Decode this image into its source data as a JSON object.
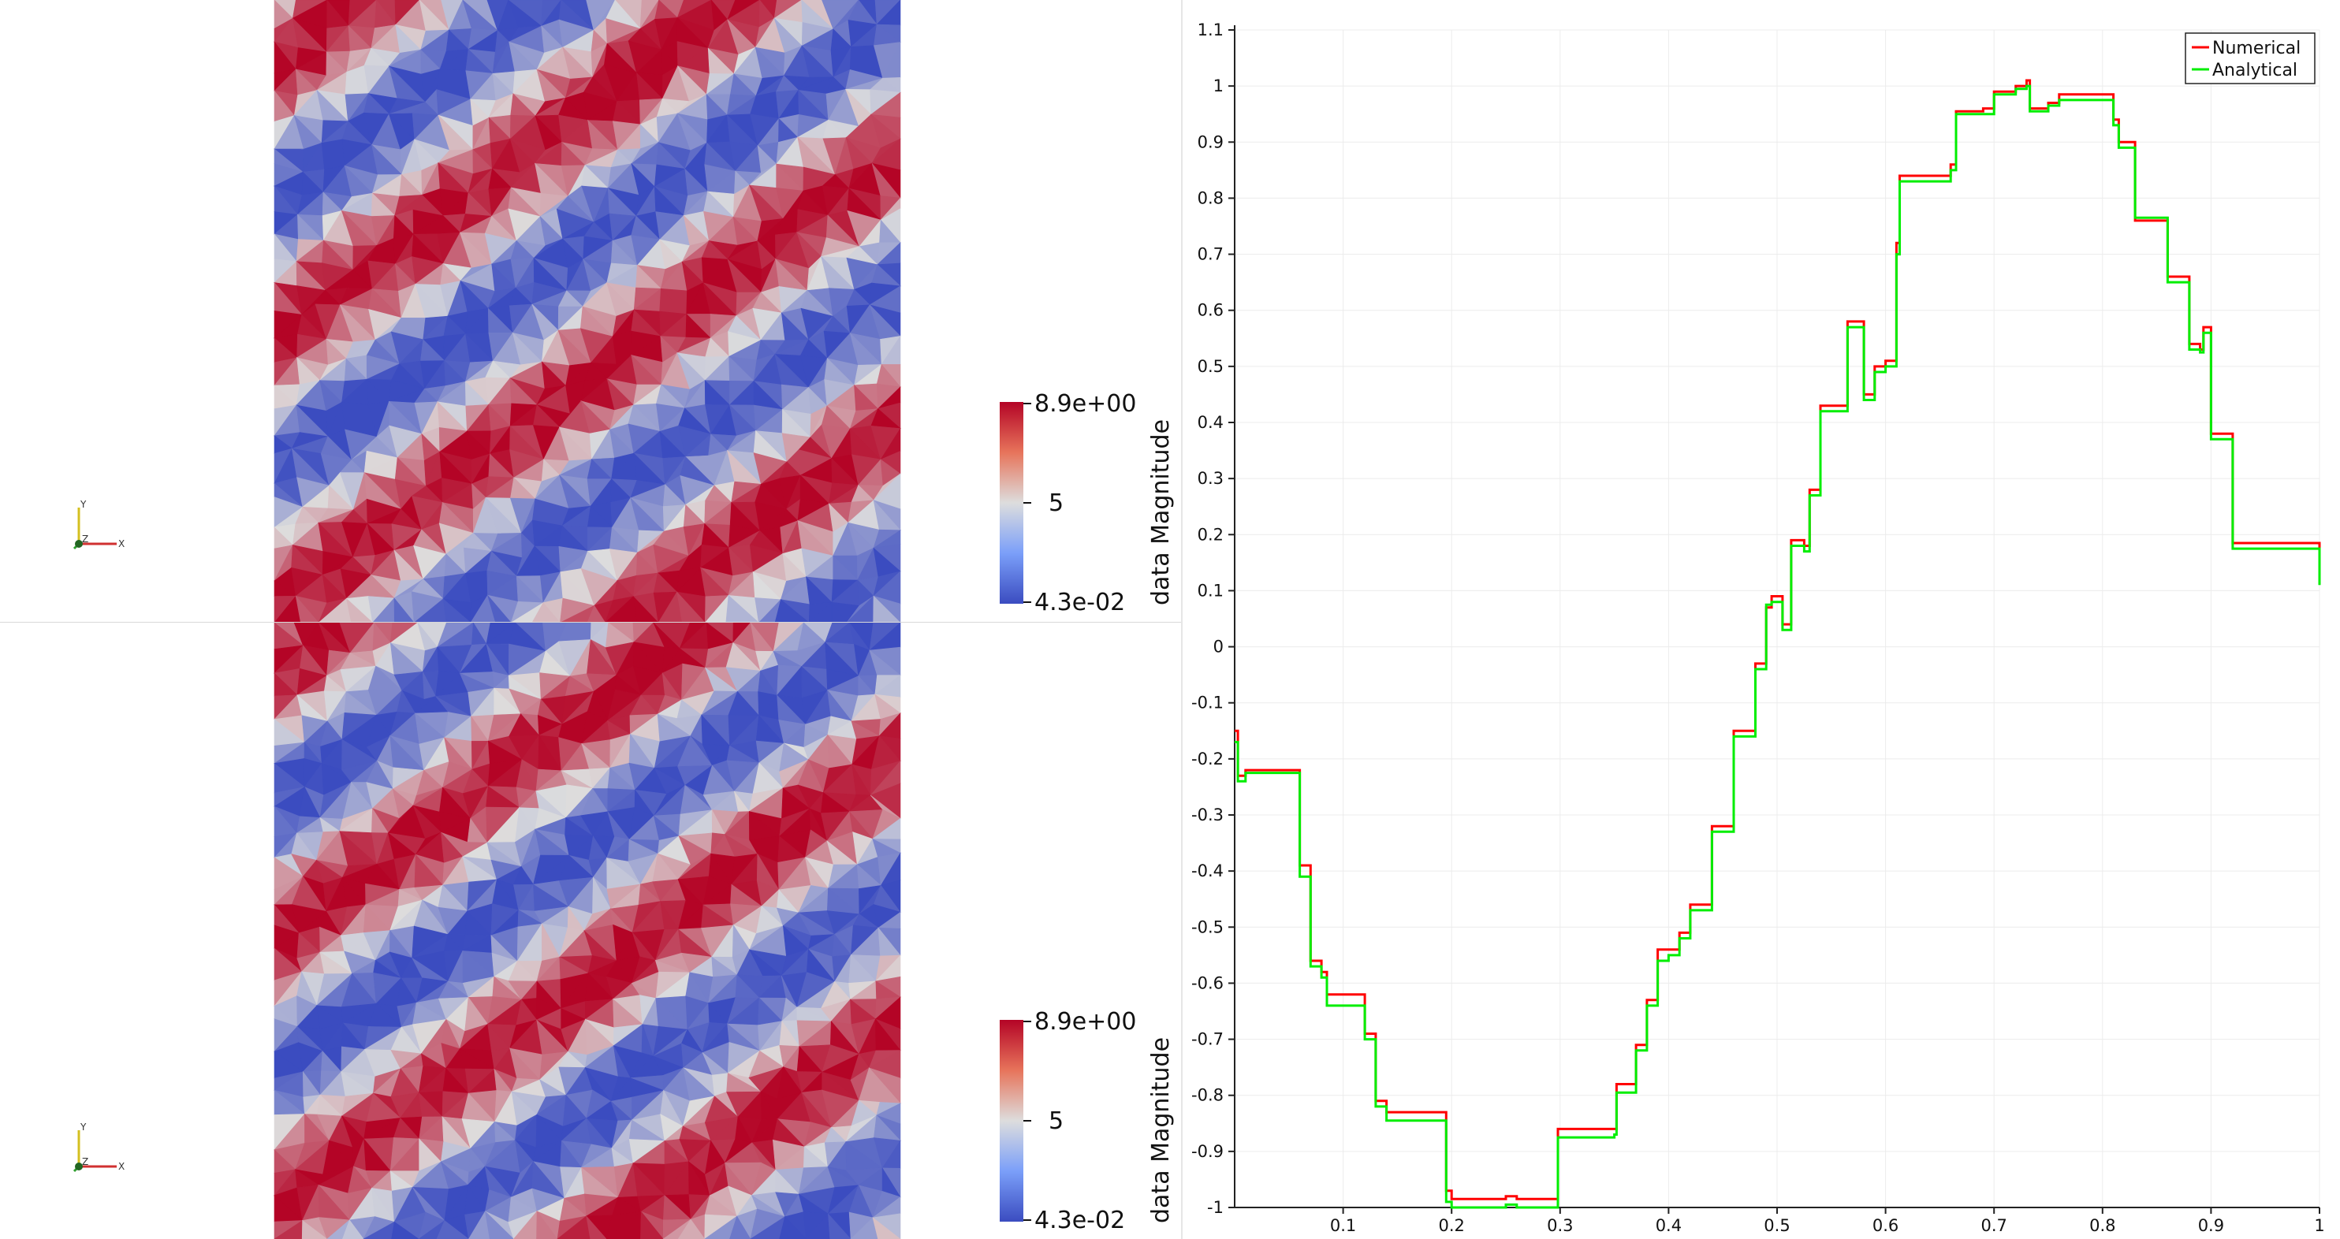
{
  "views": [
    {
      "id": "top",
      "colorbar": {
        "title": "data Magnitude",
        "max_label": "8.9e+00",
        "mid_label": "5",
        "min_label": "4.3e-02"
      },
      "axes": {
        "x": "X",
        "y": "Y",
        "z": "Z"
      }
    },
    {
      "id": "bottom",
      "colorbar": {
        "title": "data Magnitude",
        "max_label": "8.9e+00",
        "mid_label": "5",
        "min_label": "4.3e-02"
      },
      "axes": {
        "x": "X",
        "y": "Y",
        "z": "Z"
      }
    }
  ],
  "colormap": {
    "low": "#3b4cc0",
    "mid": "#dddddd",
    "high": "#b40426"
  },
  "chart_data": {
    "type": "line",
    "xlim": [
      0,
      1
    ],
    "ylim": [
      -1,
      1.1
    ],
    "x_ticks": [
      "0.1",
      "0.2",
      "0.3",
      "0.4",
      "0.5",
      "0.6",
      "0.7",
      "0.8",
      "0.9",
      "1"
    ],
    "y_ticks": [
      "1.1",
      "1",
      "0.9",
      "0.8",
      "0.7",
      "0.6",
      "0.5",
      "0.4",
      "0.3",
      "0.2",
      "0.1",
      "0",
      "-0.1",
      "-0.2",
      "-0.3",
      "-0.4",
      "-0.5",
      "-0.6",
      "-0.7",
      "-0.8",
      "-0.9",
      "-1"
    ],
    "grid": true,
    "legend_position": "top-right",
    "series": [
      {
        "name": "Numerical",
        "color": "#ff0000",
        "steps": [
          [
            0.0,
            -0.15
          ],
          [
            0.003,
            -0.23
          ],
          [
            0.01,
            -0.22
          ],
          [
            0.06,
            -0.39
          ],
          [
            0.07,
            -0.56
          ],
          [
            0.08,
            -0.58
          ],
          [
            0.085,
            -0.62
          ],
          [
            0.12,
            -0.69
          ],
          [
            0.13,
            -0.81
          ],
          [
            0.14,
            -0.83
          ],
          [
            0.195,
            -0.97
          ],
          [
            0.2,
            -0.985
          ],
          [
            0.25,
            -0.98
          ],
          [
            0.26,
            -0.985
          ],
          [
            0.298,
            -0.86
          ],
          [
            0.35,
            -0.86
          ],
          [
            0.352,
            -0.78
          ],
          [
            0.37,
            -0.71
          ],
          [
            0.38,
            -0.63
          ],
          [
            0.39,
            -0.54
          ],
          [
            0.4,
            -0.54
          ],
          [
            0.41,
            -0.51
          ],
          [
            0.42,
            -0.46
          ],
          [
            0.44,
            -0.32
          ],
          [
            0.46,
            -0.15
          ],
          [
            0.48,
            -0.03
          ],
          [
            0.49,
            0.07
          ],
          [
            0.495,
            0.09
          ],
          [
            0.5,
            0.09
          ],
          [
            0.505,
            0.04
          ],
          [
            0.513,
            0.19
          ],
          [
            0.525,
            0.18
          ],
          [
            0.53,
            0.28
          ],
          [
            0.54,
            0.43
          ],
          [
            0.555,
            0.43
          ],
          [
            0.565,
            0.58
          ],
          [
            0.575,
            0.58
          ],
          [
            0.58,
            0.45
          ],
          [
            0.59,
            0.5
          ],
          [
            0.6,
            0.51
          ],
          [
            0.61,
            0.72
          ],
          [
            0.613,
            0.84
          ],
          [
            0.655,
            0.84
          ],
          [
            0.66,
            0.86
          ],
          [
            0.665,
            0.955
          ],
          [
            0.69,
            0.96
          ],
          [
            0.7,
            0.99
          ],
          [
            0.715,
            0.99
          ],
          [
            0.72,
            1.0
          ],
          [
            0.73,
            1.01
          ],
          [
            0.733,
            0.96
          ],
          [
            0.75,
            0.97
          ],
          [
            0.76,
            0.985
          ],
          [
            0.8,
            0.985
          ],
          [
            0.81,
            0.94
          ],
          [
            0.815,
            0.9
          ],
          [
            0.83,
            0.76
          ],
          [
            0.845,
            0.76
          ],
          [
            0.86,
            0.66
          ],
          [
            0.875,
            0.66
          ],
          [
            0.88,
            0.54
          ],
          [
            0.89,
            0.53
          ],
          [
            0.893,
            0.57
          ],
          [
            0.9,
            0.38
          ],
          [
            0.913,
            0.38
          ],
          [
            0.92,
            0.185
          ],
          [
            0.97,
            0.185
          ],
          [
            1.0,
            0.12
          ]
        ]
      },
      {
        "name": "Analytical",
        "color": "#00ee00",
        "steps": [
          [
            0.0,
            -0.17
          ],
          [
            0.003,
            -0.24
          ],
          [
            0.01,
            -0.225
          ],
          [
            0.06,
            -0.41
          ],
          [
            0.07,
            -0.57
          ],
          [
            0.08,
            -0.59
          ],
          [
            0.085,
            -0.64
          ],
          [
            0.12,
            -0.7
          ],
          [
            0.13,
            -0.82
          ],
          [
            0.14,
            -0.845
          ],
          [
            0.195,
            -0.99
          ],
          [
            0.2,
            -1.0
          ],
          [
            0.25,
            -0.995
          ],
          [
            0.26,
            -1.0
          ],
          [
            0.298,
            -0.875
          ],
          [
            0.35,
            -0.87
          ],
          [
            0.352,
            -0.795
          ],
          [
            0.37,
            -0.72
          ],
          [
            0.38,
            -0.64
          ],
          [
            0.39,
            -0.56
          ],
          [
            0.4,
            -0.55
          ],
          [
            0.41,
            -0.52
          ],
          [
            0.42,
            -0.47
          ],
          [
            0.44,
            -0.33
          ],
          [
            0.46,
            -0.16
          ],
          [
            0.48,
            -0.04
          ],
          [
            0.49,
            0.075
          ],
          [
            0.495,
            0.08
          ],
          [
            0.5,
            0.08
          ],
          [
            0.505,
            0.03
          ],
          [
            0.513,
            0.18
          ],
          [
            0.525,
            0.17
          ],
          [
            0.53,
            0.27
          ],
          [
            0.54,
            0.42
          ],
          [
            0.555,
            0.42
          ],
          [
            0.565,
            0.57
          ],
          [
            0.575,
            0.57
          ],
          [
            0.58,
            0.44
          ],
          [
            0.59,
            0.49
          ],
          [
            0.6,
            0.5
          ],
          [
            0.61,
            0.7
          ],
          [
            0.613,
            0.83
          ],
          [
            0.655,
            0.83
          ],
          [
            0.66,
            0.85
          ],
          [
            0.665,
            0.95
          ],
          [
            0.69,
            0.95
          ],
          [
            0.7,
            0.985
          ],
          [
            0.715,
            0.985
          ],
          [
            0.72,
            0.995
          ],
          [
            0.73,
            1.0
          ],
          [
            0.733,
            0.955
          ],
          [
            0.75,
            0.965
          ],
          [
            0.76,
            0.975
          ],
          [
            0.8,
            0.975
          ],
          [
            0.81,
            0.93
          ],
          [
            0.815,
            0.89
          ],
          [
            0.83,
            0.765
          ],
          [
            0.845,
            0.765
          ],
          [
            0.86,
            0.65
          ],
          [
            0.875,
            0.65
          ],
          [
            0.88,
            0.53
          ],
          [
            0.89,
            0.525
          ],
          [
            0.893,
            0.56
          ],
          [
            0.9,
            0.37
          ],
          [
            0.913,
            0.37
          ],
          [
            0.92,
            0.175
          ],
          [
            0.97,
            0.175
          ],
          [
            1.0,
            0.11
          ]
        ]
      }
    ]
  }
}
